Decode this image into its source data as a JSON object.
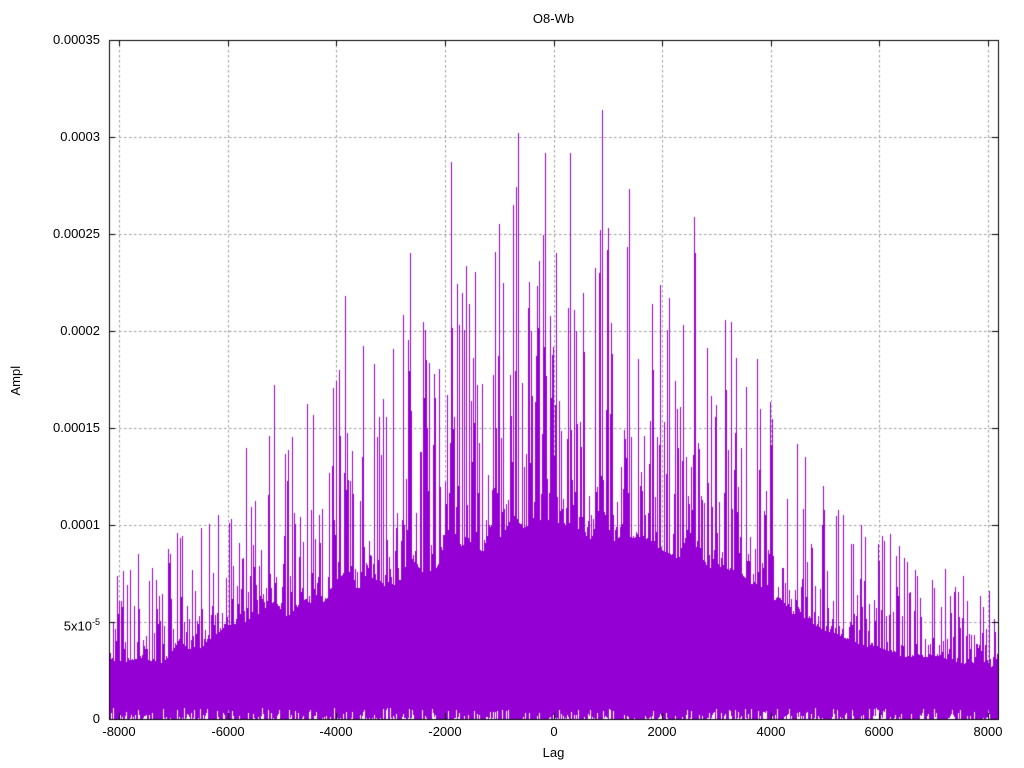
{
  "chart_data": {
    "type": "line",
    "style": "impulses",
    "title": "O8-Wb",
    "xlabel": "Lag",
    "ylabel": "Ampl",
    "xlim": [
      -8192,
      8192
    ],
    "ylim": [
      0,
      0.00035
    ],
    "grid": true,
    "legend": "none",
    "colors": {
      "series": "#9400d3",
      "grid": "#9e9e9e",
      "border": "#000000",
      "background": "#ffffff",
      "text": "#000000"
    },
    "x_ticks": [
      {
        "v": -8000,
        "label": "-8000"
      },
      {
        "v": -6000,
        "label": "-6000"
      },
      {
        "v": -4000,
        "label": "-4000"
      },
      {
        "v": -2000,
        "label": "-2000"
      },
      {
        "v": 0,
        "label": "0"
      },
      {
        "v": 2000,
        "label": "2000"
      },
      {
        "v": 4000,
        "label": "4000"
      },
      {
        "v": 6000,
        "label": "6000"
      },
      {
        "v": 8000,
        "label": "8000"
      }
    ],
    "y_ticks": [
      {
        "v": 0,
        "label": "0"
      },
      {
        "v": 5e-05,
        "label": "5x10",
        "sup": "-5"
      },
      {
        "v": 0.0001,
        "label": "0.0001"
      },
      {
        "v": 0.00015,
        "label": "0.00015"
      },
      {
        "v": 0.0002,
        "label": "0.0002"
      },
      {
        "v": 0.00025,
        "label": "0.00025"
      },
      {
        "v": 0.0003,
        "label": "0.0003"
      },
      {
        "v": 0.00035,
        "label": "0.00035"
      }
    ],
    "envelope_points": [
      [
        -8192,
        8.8e-05
      ],
      [
        -8000,
        8.2e-05
      ],
      [
        -7600,
        9e-05
      ],
      [
        -7200,
        8e-05
      ],
      [
        -6900,
        0.000114
      ],
      [
        -6600,
        9.5e-05
      ],
      [
        -6300,
        0.00012
      ],
      [
        -6000,
        0.000138
      ],
      [
        -5700,
        0.000142
      ],
      [
        -5400,
        0.000155
      ],
      [
        -5150,
        0.000172
      ],
      [
        -4900,
        0.00015
      ],
      [
        -4600,
        0.000175
      ],
      [
        -4300,
        0.000165
      ],
      [
        -4000,
        0.000195
      ],
      [
        -3850,
        0.000218
      ],
      [
        -3600,
        0.00019
      ],
      [
        -3400,
        0.00021
      ],
      [
        -3100,
        0.000195
      ],
      [
        -2850,
        0.000198
      ],
      [
        -2650,
        0.00024
      ],
      [
        -2400,
        0.000215
      ],
      [
        -2150,
        0.00022
      ],
      [
        -1900,
        0.000287
      ],
      [
        -1700,
        0.000255
      ],
      [
        -1500,
        0.00026
      ],
      [
        -1300,
        0.000245
      ],
      [
        -1150,
        0.000285
      ],
      [
        -950,
        0.000265
      ],
      [
        -750,
        0.000302
      ],
      [
        -550,
        0.00028
      ],
      [
        -350,
        0.000294
      ],
      [
        -150,
        0.000292
      ],
      [
        0,
        0.000295
      ],
      [
        150,
        0.00028
      ],
      [
        350,
        0.000292
      ],
      [
        550,
        0.00027
      ],
      [
        700,
        0.000265
      ],
      [
        900,
        0.000314
      ],
      [
        1100,
        0.00026
      ],
      [
        1300,
        0.000273
      ],
      [
        1500,
        0.000265
      ],
      [
        1650,
        0.00027
      ],
      [
        1900,
        0.00025
      ],
      [
        2100,
        0.000245
      ],
      [
        2300,
        0.000235
      ],
      [
        2600,
        0.000259
      ],
      [
        2800,
        0.000225
      ],
      [
        3000,
        0.00022
      ],
      [
        3200,
        0.000215
      ],
      [
        3400,
        0.000222
      ],
      [
        3600,
        0.0002
      ],
      [
        3800,
        0.000198
      ],
      [
        4000,
        0.000173
      ],
      [
        4200,
        0.000176
      ],
      [
        4400,
        0.000155
      ],
      [
        4600,
        0.00015
      ],
      [
        4800,
        0.00014
      ],
      [
        5000,
        0.00013
      ],
      [
        5200,
        0.000125
      ],
      [
        5500,
        0.000115
      ],
      [
        5800,
        0.000105
      ],
      [
        6100,
        0.000103
      ],
      [
        6400,
        9.2e-05
      ],
      [
        6700,
        9e-05
      ],
      [
        7000,
        9.2e-05
      ],
      [
        7300,
        8.8e-05
      ],
      [
        7600,
        8e-05
      ],
      [
        7900,
        8.6e-05
      ],
      [
        8100,
        7.5e-05
      ],
      [
        8192,
        9.5e-05
      ]
    ],
    "notable_peaks": [
      {
        "lag": 900,
        "value": 0.000314
      },
      {
        "lag": -660,
        "value": 0.000302
      },
      {
        "lag": -150,
        "value": 0.000292
      },
      {
        "lag": 310,
        "value": 0.000292
      },
      {
        "lag": -1890,
        "value": 0.000287
      },
      {
        "lag": 1400,
        "value": 0.000273
      },
      {
        "lag": 2590,
        "value": 0.000259
      },
      {
        "lag": -2650,
        "value": 0.00024
      },
      {
        "lag": -3850,
        "value": 0.000218
      },
      {
        "lag": -5150,
        "value": 0.000172
      }
    ],
    "generation": {
      "seed": 911,
      "body_floor_frac": 0.35,
      "body_span_frac": 0.62,
      "spike_shape_exp": 3,
      "bottom_gap_prob": 0.45,
      "bottom_gap_max": 5.5e-06
    }
  }
}
